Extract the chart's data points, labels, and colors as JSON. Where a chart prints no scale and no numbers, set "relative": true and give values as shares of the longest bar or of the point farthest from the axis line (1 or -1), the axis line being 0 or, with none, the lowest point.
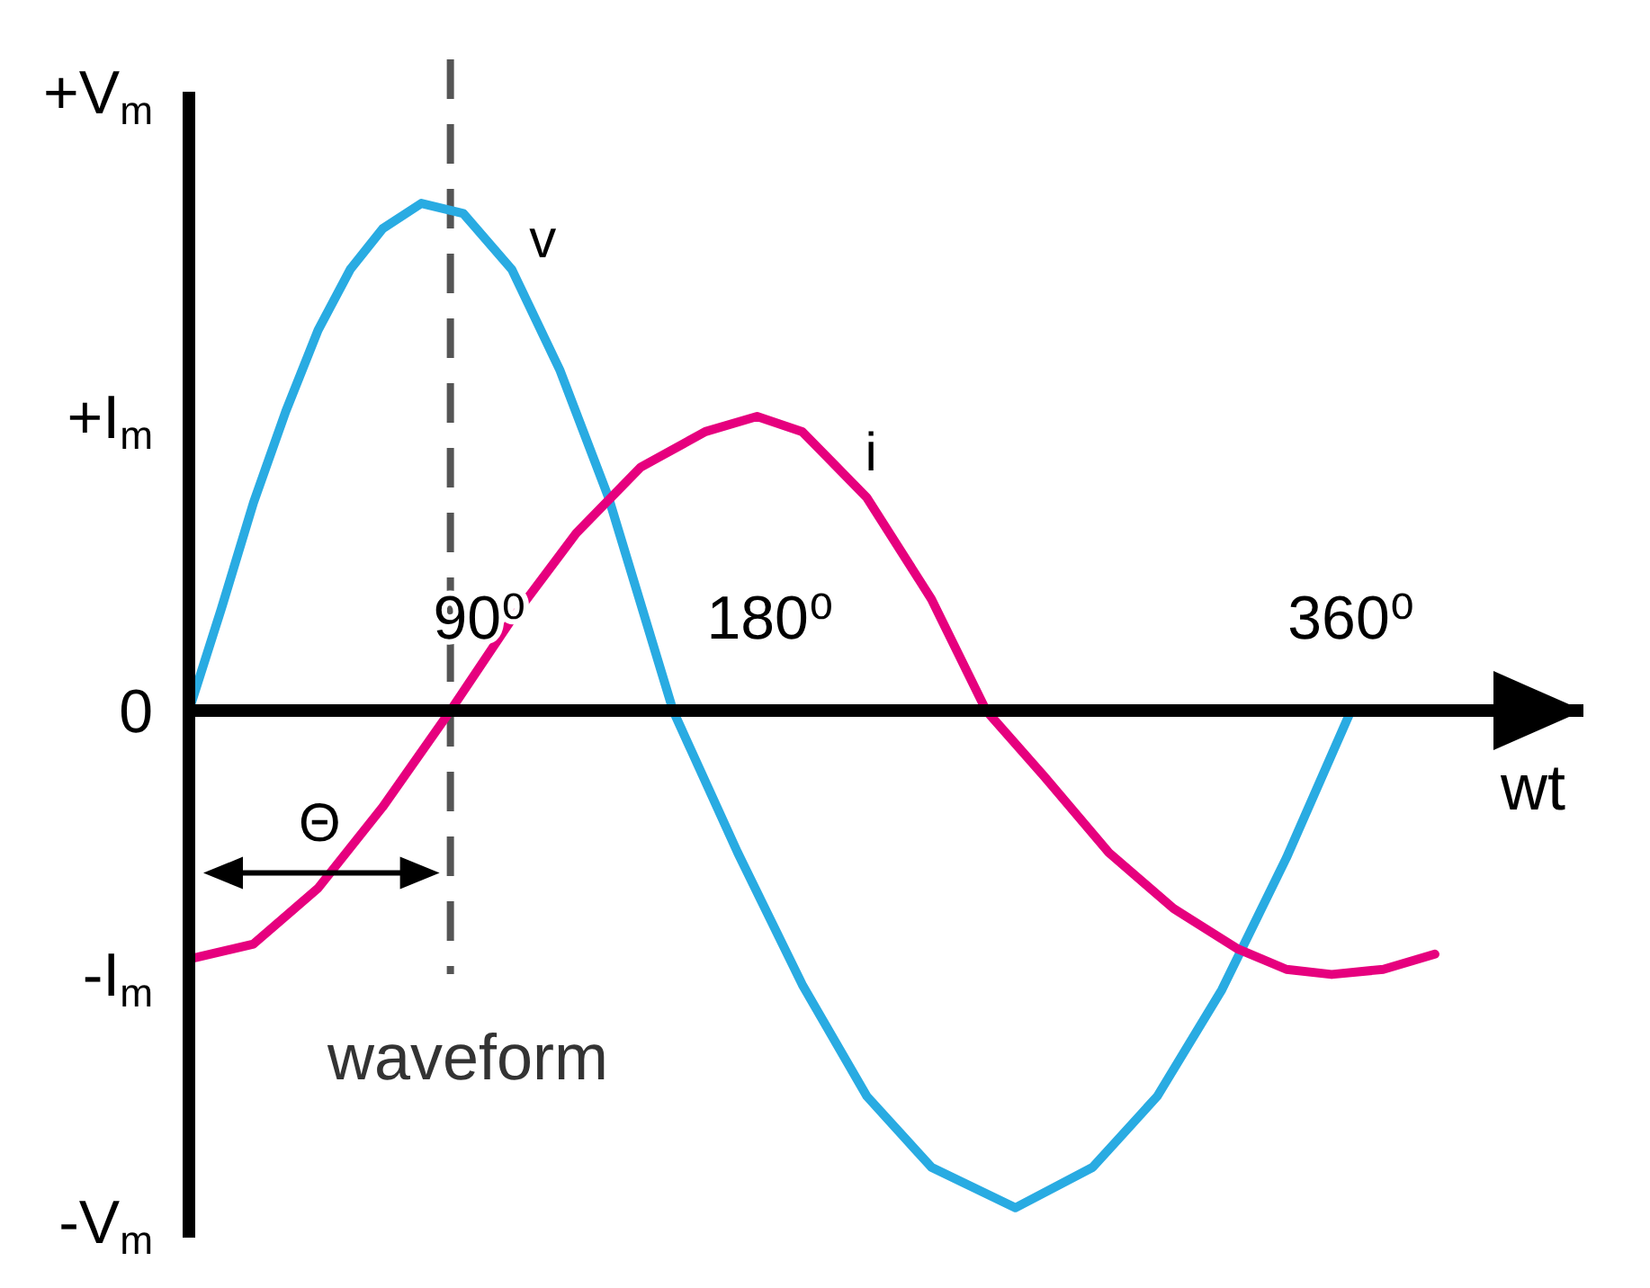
{
  "chart_data": {
    "type": "line",
    "xlabel": "wt",
    "relative": true,
    "xlim": [
      0,
      432
    ],
    "xticks": [
      {
        "value": 90,
        "label": "90⁰"
      },
      {
        "value": 180,
        "label": "180⁰"
      },
      {
        "value": 360,
        "label": "360⁰"
      }
    ],
    "series": [
      {
        "name": "v",
        "color": "#29abe2",
        "x": [
          0,
          10,
          20,
          30,
          40,
          50,
          60,
          72,
          85,
          100,
          115,
          130,
          150,
          170,
          190,
          210,
          230,
          256,
          280,
          300,
          320,
          340,
          360
        ],
        "values": [
          0,
          0.2,
          0.41,
          0.59,
          0.75,
          0.87,
          0.95,
          1,
          0.98,
          0.87,
          0.67,
          0.42,
          0,
          -0.28,
          -0.54,
          -0.76,
          -0.9,
          -0.98,
          -0.9,
          -0.76,
          -0.55,
          -0.29,
          0
        ]
      },
      {
        "name": "i",
        "color": "#e6007e",
        "x": [
          0,
          20,
          40,
          60,
          81,
          100,
          120,
          140,
          160,
          176,
          190,
          210,
          230,
          247,
          265,
          285,
          305,
          325,
          340,
          354,
          370,
          386
        ],
        "values": [
          -0.49,
          -0.46,
          -0.35,
          -0.19,
          0,
          0.18,
          0.35,
          0.48,
          0.55,
          0.58,
          0.55,
          0.42,
          0.22,
          0,
          -0.13,
          -0.28,
          -0.39,
          -0.47,
          -0.51,
          -0.52,
          -0.51,
          -0.48
        ]
      }
    ],
    "ref_lines": [
      {
        "axis": "x",
        "value": 81,
        "color": "#555555",
        "line_style": "dashed"
      }
    ],
    "annotations": [
      "Θ",
      "waveform",
      "+V$_{m}$",
      "+I$_{m}$",
      "0",
      "-I$_{m}$",
      "-V$_{m}$"
    ],
    "marker": "none",
    "line_style": "solid"
  }
}
